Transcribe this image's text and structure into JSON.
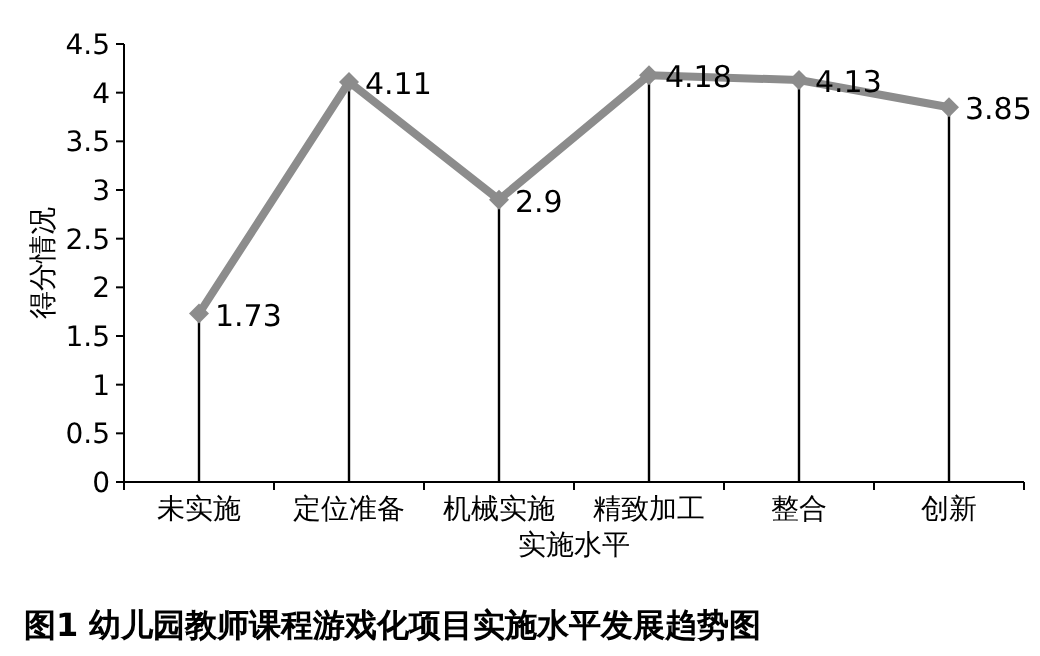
{
  "chart_data": {
    "type": "line",
    "title": "图1 幼儿园教师课程游戏化项目实施水平发展趋势图",
    "xlabel": "实施水平",
    "ylabel": "得分情况",
    "categories": [
      "未实施",
      "定位准备",
      "机械实施",
      "精致加工",
      "整合",
      "创新"
    ],
    "series": [
      {
        "color": "#8c8c8c",
        "values": [
          1.73,
          4.11,
          2.9,
          4.18,
          4.13,
          3.85
        ],
        "marker": "diamond",
        "line_style": "solid"
      }
    ],
    "data_labels": true,
    "grid": "x",
    "ylim": [
      0,
      4.5
    ],
    "yticks": [
      0,
      0.5,
      1,
      1.5,
      2,
      2.5,
      3,
      3.5,
      4,
      4.5
    ]
  }
}
